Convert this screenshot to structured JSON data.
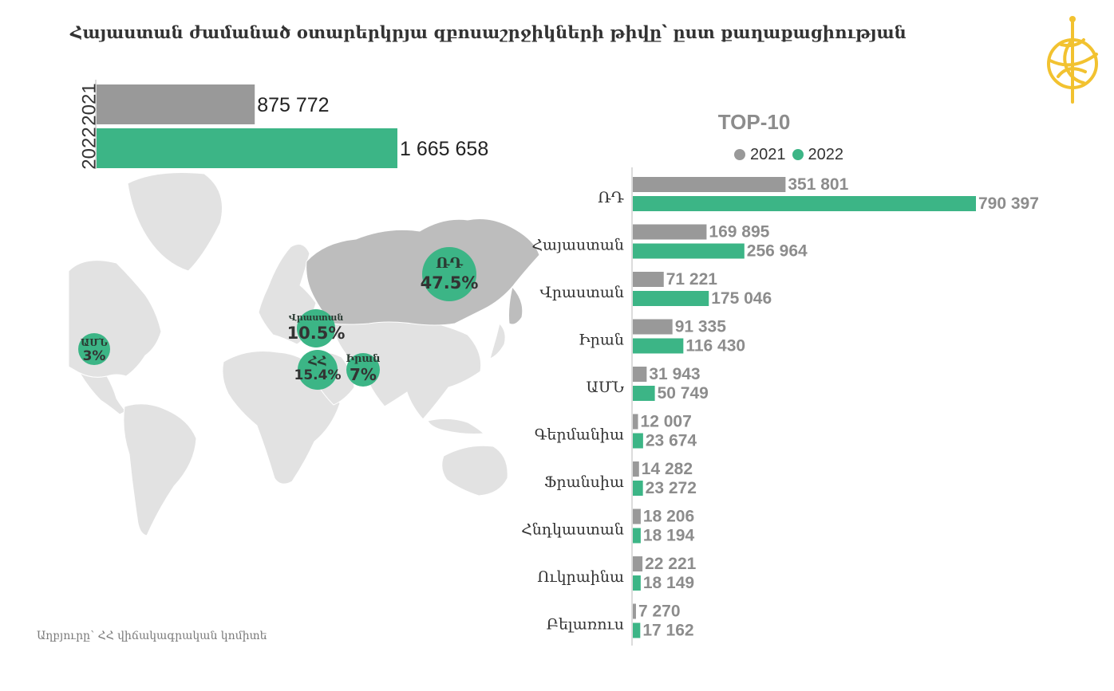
{
  "title": "Հայաստան ժամանած օտարերկրյա զբոսաշրջիկների թիվը՝ ըստ քաղաքացիության",
  "source": "Աղբյուրը՝ ՀՀ վիճակագրական կոմիտե",
  "colors": {
    "y2021": "#999999",
    "y2022": "#3cb586",
    "map_land": "#e2e2e2",
    "map_highlight": "#bdbdbd",
    "logo": "#f2c230",
    "text_dark": "#333333",
    "value_gray": "#8c8c8c"
  },
  "logo_icon": "globe-logo-icon",
  "chart_data": [
    {
      "type": "bar",
      "orientation": "horizontal",
      "categories": [
        "2021",
        "2022"
      ],
      "values": [
        875772,
        1665658
      ],
      "value_labels": [
        "875 772",
        "1 665 658"
      ]
    },
    {
      "type": "map",
      "bubbles": [
        {
          "label": "ՌԴ",
          "value": 47.5,
          "value_label": "47.5%"
        },
        {
          "label": "Վրաստան",
          "value": 10.5,
          "value_label": "10.5%"
        },
        {
          "label": "ՀՀ",
          "value": 15.4,
          "value_label": "15.4%"
        },
        {
          "label": "Իրան",
          "value": 7,
          "value_label": "7%"
        },
        {
          "label": "ԱՄՆ",
          "value": 3,
          "value_label": "3%"
        }
      ]
    },
    {
      "type": "bar",
      "orientation": "horizontal",
      "title": "TOP-10",
      "legend": [
        "2021",
        "2022"
      ],
      "legend_position": "top",
      "categories": [
        "ՌԴ",
        "Հայաստան",
        "Վրաստան",
        "Իրան",
        "ԱՄՆ",
        "Գերմանիա",
        "Ֆրանսիա",
        "Հնդկաստան",
        "Ուկրաինա",
        "Բելառուս"
      ],
      "series": [
        {
          "name": "2021",
          "values": [
            351801,
            169895,
            71221,
            91335,
            31943,
            12007,
            14282,
            18206,
            22221,
            7270
          ],
          "labels": [
            "351 801",
            "169 895",
            "71 221",
            "91 335",
            "31 943",
            "12 007",
            "14 282",
            "18 206",
            "22 221",
            "7 270"
          ]
        },
        {
          "name": "2022",
          "values": [
            790397,
            256964,
            175046,
            116430,
            50749,
            23674,
            23272,
            18194,
            18149,
            17162
          ],
          "labels": [
            "790 397",
            "256 964",
            "175 046",
            "116 430",
            "50 749",
            "23 674",
            "23 272",
            "18 194",
            "18 149",
            "17 162"
          ]
        }
      ]
    }
  ]
}
